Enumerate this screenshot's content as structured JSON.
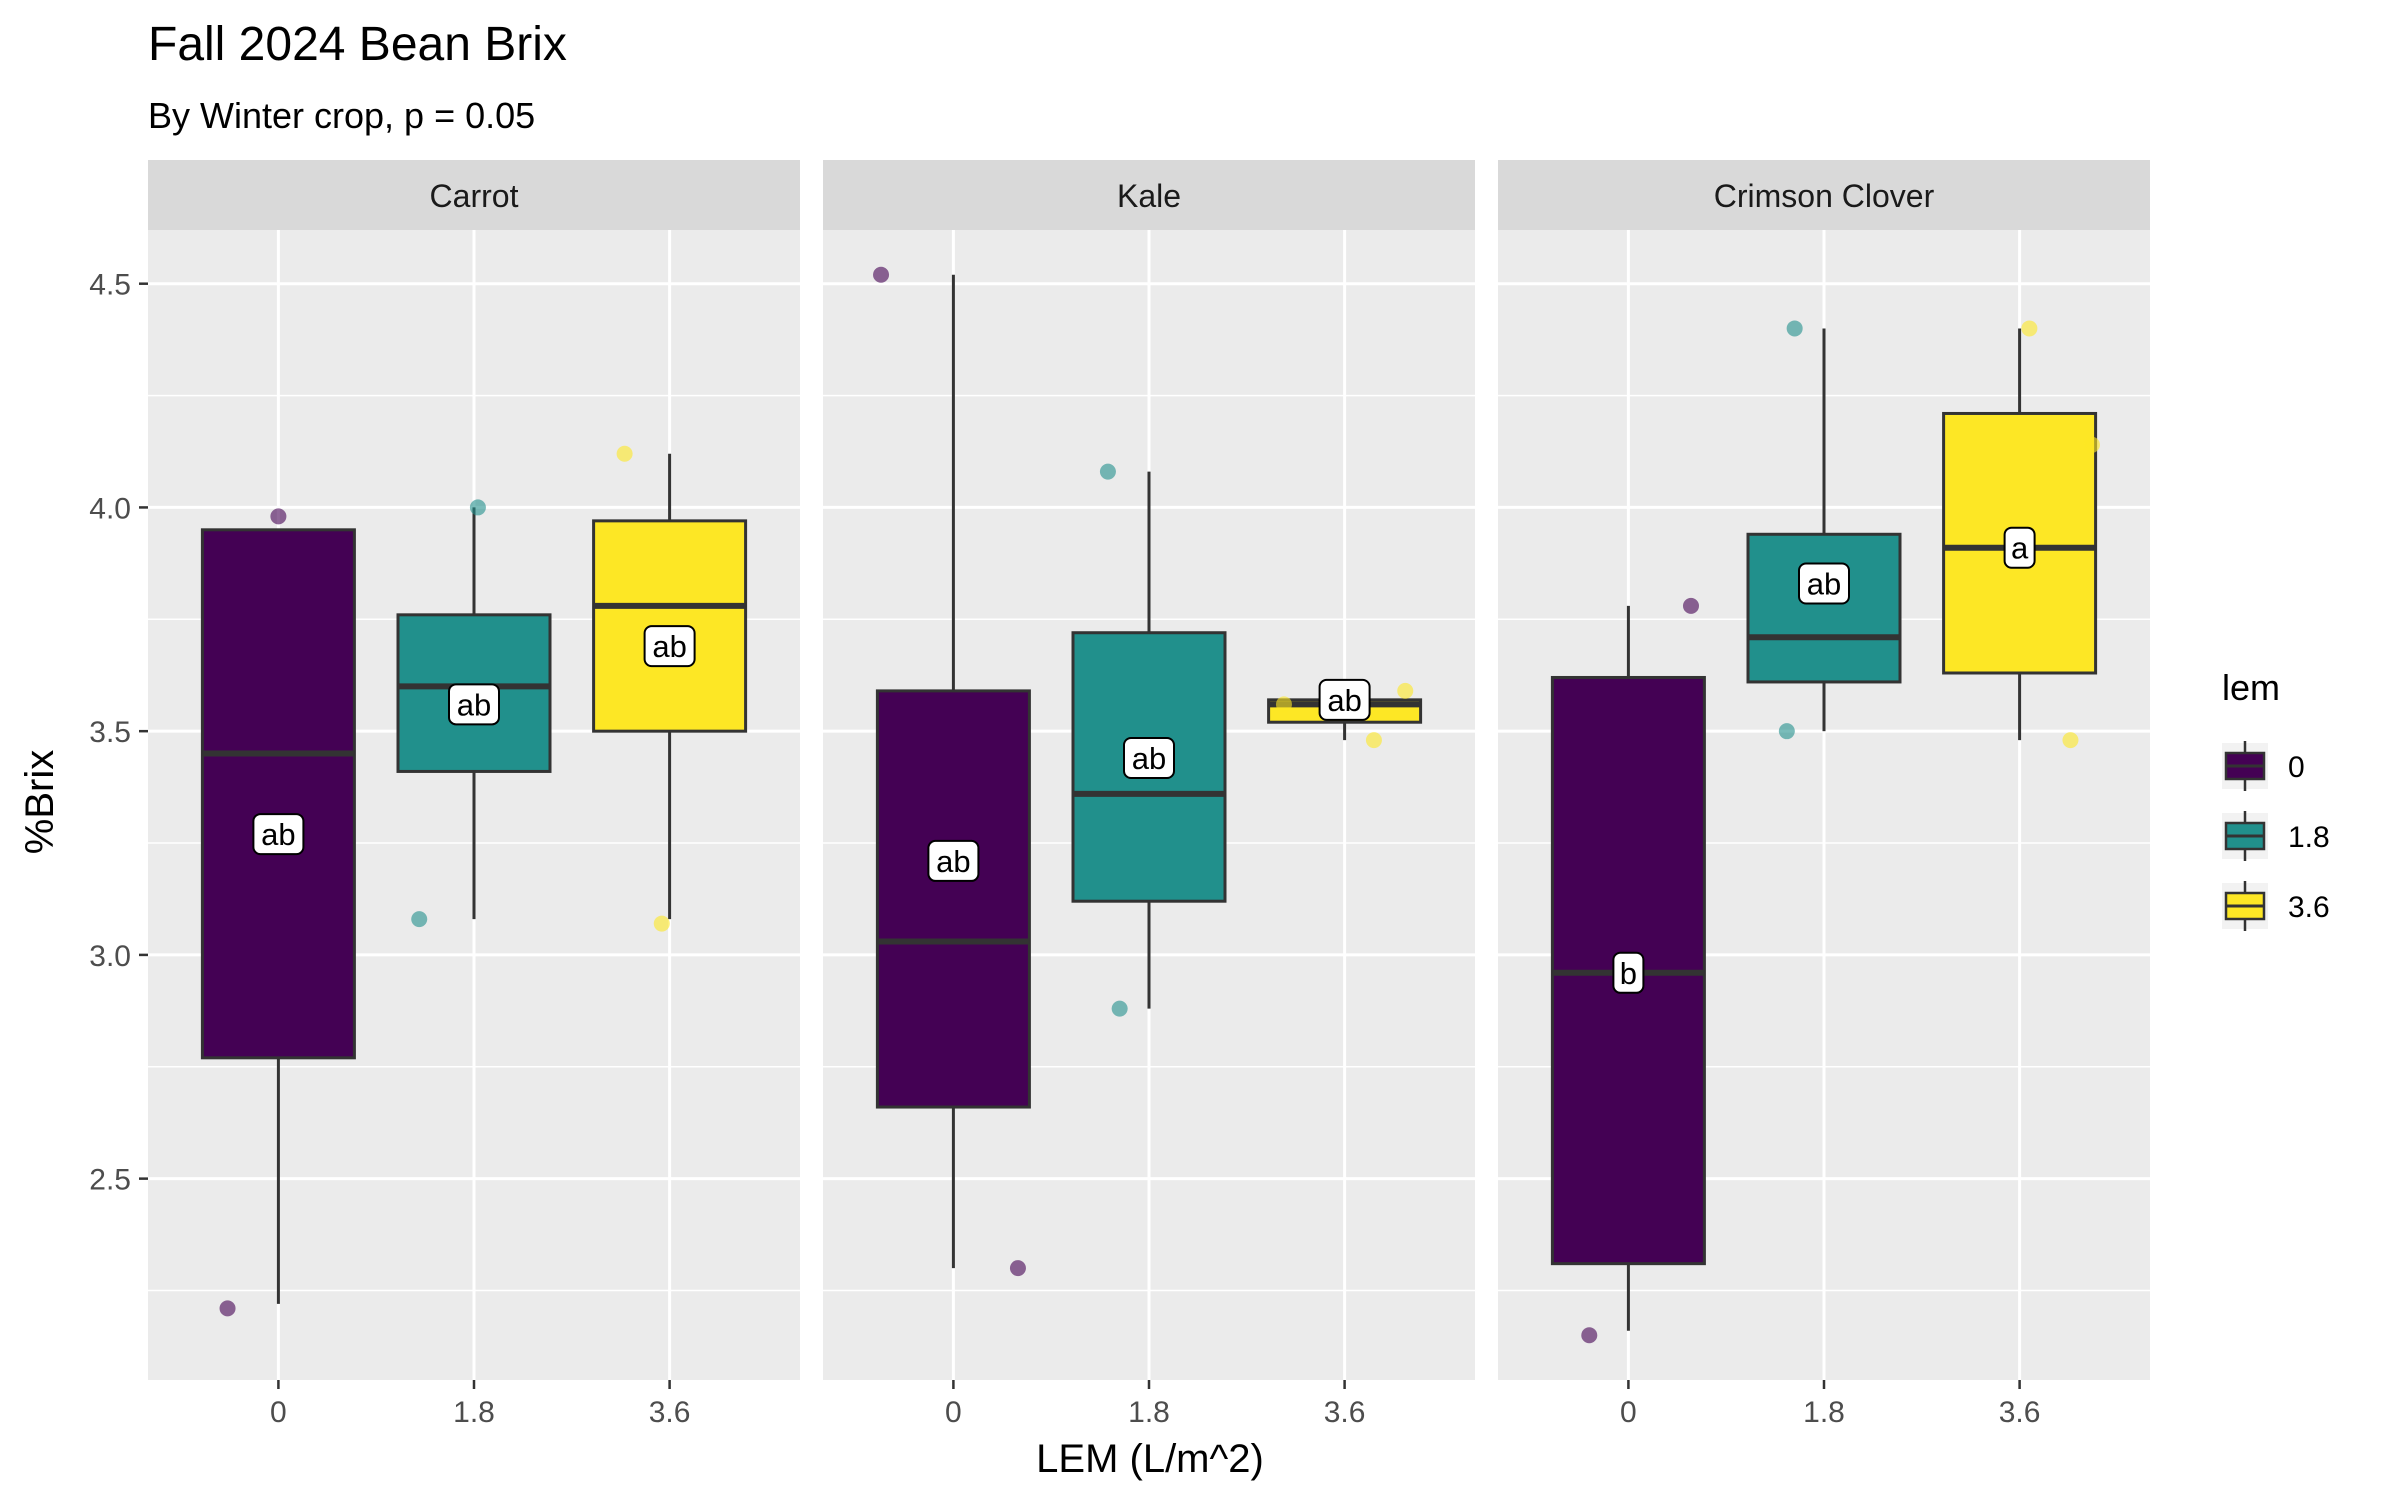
{
  "chart_data": {
    "type": "boxplot",
    "title": "Fall 2024 Bean Brix",
    "subtitle": "By Winter crop, p = 0.05",
    "xlabel": "LEM (L/m^2)",
    "ylabel": "%Brix",
    "ylim": [
      2.05,
      4.62
    ],
    "yticks": [
      "2.5",
      "3.0",
      "3.5",
      "4.0",
      "4.5"
    ],
    "categories": [
      "0",
      "1.8",
      "3.6"
    ],
    "grid": true,
    "legend": {
      "title": "lem",
      "position": "right",
      "entries": [
        {
          "label": "0",
          "color": "#440154"
        },
        {
          "label": "1.8",
          "color": "#21908C"
        },
        {
          "label": "3.6",
          "color": "#FDE725"
        }
      ]
    },
    "panels": [
      {
        "name": "Carrot",
        "boxes": [
          {
            "category": "0",
            "min": 2.22,
            "q1": 2.77,
            "median": 3.45,
            "q3": 3.95,
            "max": 3.95,
            "label": "ab",
            "label_y": 3.27
          },
          {
            "category": "1.8",
            "min": 3.08,
            "q1": 3.41,
            "median": 3.6,
            "q3": 3.76,
            "max": 4.0,
            "label": "ab",
            "label_y": 3.56
          },
          {
            "category": "3.6",
            "min": 3.08,
            "q1": 3.5,
            "median": 3.78,
            "q3": 3.97,
            "max": 4.12,
            "label": "ab",
            "label_y": 3.69
          }
        ],
        "points": [
          {
            "category": "0",
            "offset": -0.26,
            "y": 2.21
          },
          {
            "category": "0",
            "offset": 0.0,
            "y": 3.98
          },
          {
            "category": "1.8",
            "offset": -0.28,
            "y": 3.08
          },
          {
            "category": "1.8",
            "offset": 0.02,
            "y": 4.0
          },
          {
            "category": "3.6",
            "offset": -0.23,
            "y": 4.12
          },
          {
            "category": "3.6",
            "offset": -0.04,
            "y": 3.07
          }
        ]
      },
      {
        "name": "Kale",
        "boxes": [
          {
            "category": "0",
            "min": 2.3,
            "q1": 2.66,
            "median": 3.03,
            "q3": 3.59,
            "max": 4.52,
            "label": "ab",
            "label_y": 3.21
          },
          {
            "category": "1.8",
            "min": 2.88,
            "q1": 3.12,
            "median": 3.36,
            "q3": 3.72,
            "max": 4.08,
            "label": "ab",
            "label_y": 3.44
          },
          {
            "category": "3.6",
            "min": 3.48,
            "q1": 3.52,
            "median": 3.56,
            "q3": 3.57,
            "max": 3.59,
            "label": "ab",
            "label_y": 3.57
          }
        ],
        "points": [
          {
            "category": "0",
            "offset": -0.37,
            "y": 4.52
          },
          {
            "category": "0",
            "offset": 0.33,
            "y": 2.3
          },
          {
            "category": "1.8",
            "offset": -0.21,
            "y": 4.08
          },
          {
            "category": "1.8",
            "offset": -0.15,
            "y": 2.88
          },
          {
            "category": "3.6",
            "offset": -0.31,
            "y": 3.56
          },
          {
            "category": "3.6",
            "offset": 0.15,
            "y": 3.48
          },
          {
            "category": "3.6",
            "offset": 0.31,
            "y": 3.59
          }
        ]
      },
      {
        "name": "Crimson Clover",
        "boxes": [
          {
            "category": "0",
            "min": 2.16,
            "q1": 2.31,
            "median": 2.96,
            "q3": 3.62,
            "max": 3.78,
            "label": "b",
            "label_y": 2.96
          },
          {
            "category": "1.8",
            "min": 3.5,
            "q1": 3.61,
            "median": 3.71,
            "q3": 3.94,
            "max": 4.4,
            "label": "ab",
            "label_y": 3.83
          },
          {
            "category": "3.6",
            "min": 3.48,
            "q1": 3.63,
            "median": 3.91,
            "q3": 4.21,
            "max": 4.4,
            "label": "a",
            "label_y": 3.91
          }
        ],
        "points": [
          {
            "category": "0",
            "offset": -0.2,
            "y": 2.15
          },
          {
            "category": "0",
            "offset": 0.32,
            "y": 3.78
          },
          {
            "category": "1.8",
            "offset": -0.19,
            "y": 3.5
          },
          {
            "category": "1.8",
            "offset": -0.15,
            "y": 4.4
          },
          {
            "category": "3.6",
            "offset": 0.05,
            "y": 4.4
          },
          {
            "category": "3.6",
            "offset": 0.26,
            "y": 3.48
          },
          {
            "category": "3.6",
            "offset": 0.37,
            "y": 4.14
          }
        ]
      }
    ]
  }
}
